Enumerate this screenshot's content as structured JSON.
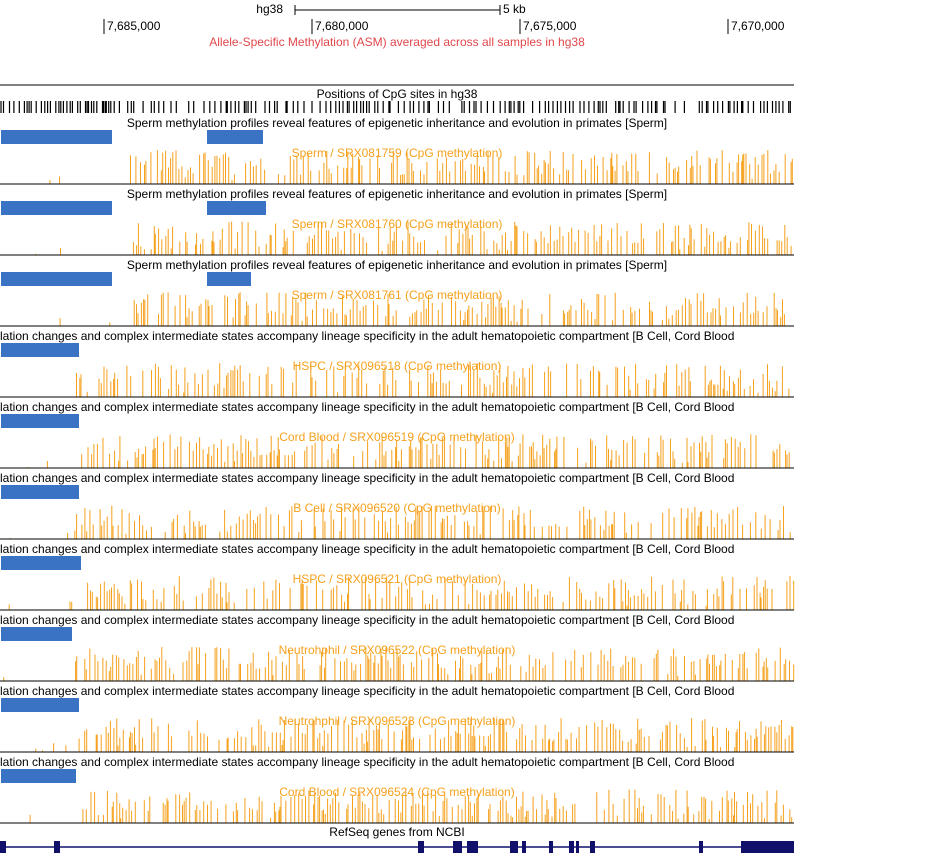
{
  "header": {
    "assembly": "hg38",
    "scale": "5 kb",
    "positions": [
      "7,685,000",
      "7,680,000",
      "7,675,000",
      "7,670,000"
    ],
    "asm_title": "Allele-Specific Methylation (ASM) averaged across all samples in hg38"
  },
  "cpg_track": {
    "label": "Positions of CpG sites in hg38"
  },
  "tracks": [
    {
      "description": "Sperm methylation profiles reveal features of epigenetic inheritance and evolution in primates [Sperm]",
      "sample_label": "Sperm / SRX081759 (CpG methylation)"
    },
    {
      "description": "Sperm methylation profiles reveal features of epigenetic inheritance and evolution in primates [Sperm]",
      "sample_label": "Sperm / SRX081760 (CpG methylation)"
    },
    {
      "description": "Sperm methylation profiles reveal features of epigenetic inheritance and evolution in primates [Sperm]",
      "sample_label": "Sperm / SRX081761 (CpG methylation)"
    },
    {
      "description": "lation changes and complex intermediate states accompany lineage specificity in the adult hematopoietic compartment [B Cell, Cord Blood",
      "sample_label": "HSPC / SRX096518 (CpG methylation)"
    },
    {
      "description": "lation changes and complex intermediate states accompany lineage specificity in the adult hematopoietic compartment [B Cell, Cord Blood",
      "sample_label": "Cord Blood / SRX096519 (CpG methylation)"
    },
    {
      "description": "lation changes and complex intermediate states accompany lineage specificity in the adult hematopoietic compartment [B Cell, Cord Blood",
      "sample_label": "B Cell / SRX096520 (CpG methylation)"
    },
    {
      "description": "lation changes and complex intermediate states accompany lineage specificity in the adult hematopoietic compartment [B Cell, Cord Blood",
      "sample_label": "HSPC / SRX096521 (CpG methylation)"
    },
    {
      "description": "lation changes and complex intermediate states accompany lineage specificity in the adult hematopoietic compartment [B Cell, Cord Blood",
      "sample_label": "Neutrohphil / SRX096522 (CpG methylation)"
    },
    {
      "description": "lation changes and complex intermediate states accompany lineage specificity in the adult hematopoietic compartment [B Cell, Cord Blood",
      "sample_label": "Neutrohphil / SRX096523 (CpG methylation)"
    },
    {
      "description": "lation changes and complex intermediate states accompany lineage specificity in the adult hematopoietic compartment [B Cell, Cord Blood",
      "sample_label": "Cord Blood / SRX096524 (CpG methylation)"
    }
  ],
  "gene_track": {
    "label": "RefSeq genes from NCBI"
  }
}
